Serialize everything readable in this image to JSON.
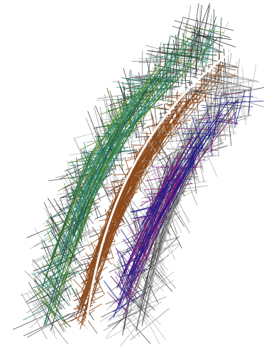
{
  "background_color": "#ffffff",
  "palette": {
    "dark_gray": "#3a3a3a",
    "mid_gray": "#8a8a8a",
    "light_gray": "#b5b5b5",
    "dark_green": "#1f5a3c",
    "teal": "#2c8f85",
    "olive_green": "#5a8e2a",
    "brown": "#8c4a1c",
    "navy": "#1c1c8c",
    "purple": "#7a1c7a"
  }
}
